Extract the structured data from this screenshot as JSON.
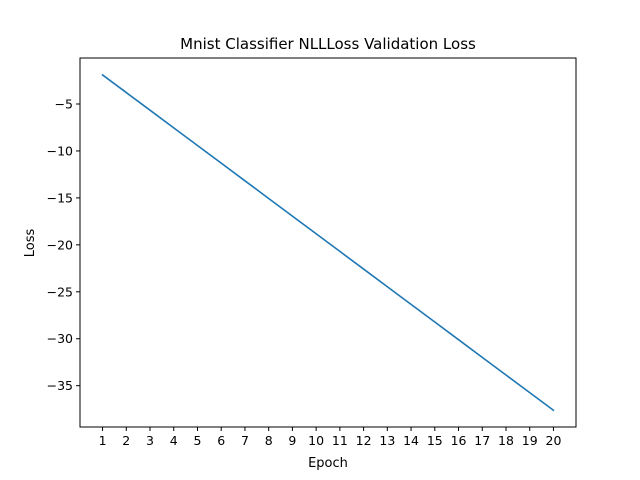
{
  "chart_data": {
    "type": "line",
    "title": "Mnist Classifier NLLLoss Validation Loss",
    "xlabel": "Epoch",
    "ylabel": "Loss",
    "x": [
      1,
      2,
      3,
      4,
      5,
      6,
      7,
      8,
      9,
      10,
      11,
      12,
      13,
      14,
      15,
      16,
      17,
      18,
      19,
      20
    ],
    "series": [
      {
        "values": [
          -1.9,
          -3.78,
          -5.66,
          -7.54,
          -9.42,
          -11.3,
          -13.18,
          -15.06,
          -16.94,
          -18.82,
          -20.7,
          -22.58,
          -24.46,
          -26.34,
          -28.22,
          -30.1,
          -31.98,
          -33.86,
          -35.74,
          -37.62
        ]
      }
    ],
    "xticks": [
      1,
      2,
      3,
      4,
      5,
      6,
      7,
      8,
      9,
      10,
      11,
      12,
      13,
      14,
      15,
      16,
      17,
      18,
      19,
      20
    ],
    "yticks": [
      -5,
      -10,
      -15,
      -20,
      -25,
      -30,
      -35
    ],
    "ytick_labels": [
      "−5",
      "−10",
      "−15",
      "−20",
      "−25",
      "−30",
      "−35"
    ],
    "xlim": [
      0.05,
      20.95
    ],
    "ylim": [
      -39.4,
      -0.1
    ],
    "line_color": "#1f77b4",
    "grid": false,
    "legend": false
  }
}
